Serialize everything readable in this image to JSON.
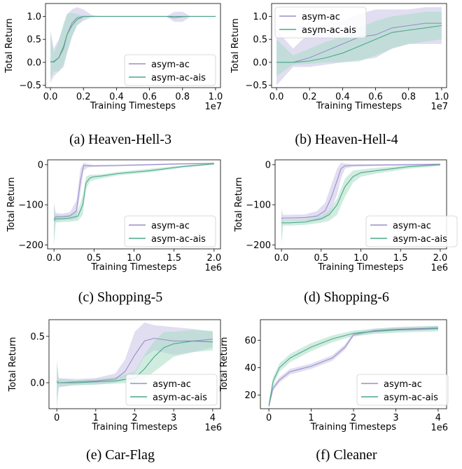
{
  "colors": {
    "asym_ac": "#9b8ec9",
    "asym_ac_ais": "#4aa88a",
    "band_ac": "#c9c2e6",
    "band_ais": "#a9dcc5"
  },
  "captions": [
    "(a)  Heaven-Hell-3",
    "(b)  Heaven-Hell-4",
    "(c)  Shopping-5",
    "(d)  Shopping-6",
    "(e)  Car-Flag",
    "(f)  Cleaner"
  ],
  "chart_data": [
    {
      "type": "line",
      "title": "",
      "xlabel": "Training Timesteps",
      "ylabel": "Total Return",
      "x_multiplier": "1e7",
      "xlim": [
        -0.03,
        1.03
      ],
      "ylim": [
        -0.55,
        1.28
      ],
      "xticks": [
        "0.0",
        "0.2",
        "0.4",
        "0.6",
        "0.8",
        "1.0"
      ],
      "xtick_values": [
        0,
        0.2,
        0.4,
        0.6,
        0.8,
        1.0
      ],
      "yticks": [
        "−0.5",
        "0.0",
        "0.5",
        "1.0"
      ],
      "ytick_values": [
        -0.5,
        0,
        0.5,
        1.0
      ],
      "grid": false,
      "legend_position": "lower-right",
      "series": [
        {
          "name": "asym-ac",
          "x": [
            0,
            0.02,
            0.05,
            0.08,
            0.1,
            0.13,
            0.16,
            0.2,
            0.25,
            0.3,
            0.5,
            0.7,
            0.75,
            0.8,
            0.85,
            1.0
          ],
          "y": [
            0.02,
            0.0,
            0.1,
            0.3,
            0.6,
            0.85,
            0.97,
            1.0,
            1.0,
            1.0,
            1.0,
            1.0,
            0.97,
            0.99,
            1.0,
            1.0
          ],
          "upper": [
            0.7,
            0.3,
            0.5,
            0.8,
            1.05,
            1.15,
            1.2,
            1.15,
            1.03,
            1.0,
            1.0,
            1.0,
            1.1,
            1.1,
            1.0,
            1.0
          ],
          "lower": [
            -0.45,
            -0.3,
            -0.2,
            -0.1,
            0.2,
            0.55,
            0.8,
            0.9,
            0.98,
            1.0,
            1.0,
            1.0,
            0.88,
            0.88,
            1.0,
            1.0
          ]
        },
        {
          "name": "asym-ac-ais",
          "x": [
            0,
            0.02,
            0.05,
            0.08,
            0.1,
            0.13,
            0.16,
            0.2,
            0.25,
            0.3,
            0.5,
            0.7,
            0.75,
            0.8,
            0.85,
            1.0
          ],
          "y": [
            0.0,
            0.02,
            0.1,
            0.35,
            0.6,
            0.8,
            0.93,
            1.0,
            1.0,
            1.0,
            1.0,
            1.0,
            1.0,
            1.0,
            1.0,
            1.0
          ],
          "upper": [
            0.6,
            0.2,
            0.45,
            0.85,
            1.05,
            1.08,
            1.05,
            1.02,
            1.0,
            1.0,
            1.0,
            1.0,
            1.0,
            1.0,
            1.0,
            1.0
          ],
          "lower": [
            -0.35,
            -0.2,
            -0.2,
            -0.05,
            0.2,
            0.55,
            0.8,
            0.95,
            1.0,
            1.0,
            1.0,
            1.0,
            1.0,
            1.0,
            1.0,
            1.0
          ]
        }
      ]
    },
    {
      "type": "line",
      "title": "",
      "xlabel": "Training Timesteps",
      "ylabel": "Total Return",
      "x_multiplier": "1e7",
      "xlim": [
        -0.03,
        1.03
      ],
      "ylim": [
        -0.55,
        1.28
      ],
      "xticks": [
        "0.0",
        "0.2",
        "0.4",
        "0.6",
        "0.8",
        "1.0"
      ],
      "xtick_values": [
        0,
        0.2,
        0.4,
        0.6,
        0.8,
        1.0
      ],
      "yticks": [
        "−0.5",
        "0.0",
        "0.5",
        "1.0"
      ],
      "ytick_values": [
        -0.5,
        0,
        0.5,
        1.0
      ],
      "grid": false,
      "legend_position": "upper-left",
      "series": [
        {
          "name": "asym-ac",
          "x": [
            0,
            0.1,
            0.2,
            0.3,
            0.4,
            0.5,
            0.6,
            0.7,
            0.8,
            0.9,
            1.0
          ],
          "y": [
            0.0,
            0.0,
            0.1,
            0.25,
            0.4,
            0.55,
            0.6,
            0.75,
            0.8,
            0.85,
            0.85
          ],
          "upper": [
            0.7,
            0.3,
            0.65,
            0.85,
            0.9,
            1.05,
            1.15,
            1.15,
            1.15,
            1.2,
            1.2
          ],
          "lower": [
            -0.5,
            -0.1,
            -0.1,
            -0.05,
            0.0,
            0.05,
            0.1,
            0.3,
            0.4,
            0.4,
            0.4
          ]
        },
        {
          "name": "asym-ac-ais",
          "x": [
            0,
            0.1,
            0.2,
            0.3,
            0.4,
            0.5,
            0.6,
            0.7,
            0.8,
            0.9,
            1.0
          ],
          "y": [
            0.0,
            0.0,
            0.03,
            0.1,
            0.2,
            0.35,
            0.5,
            0.65,
            0.7,
            0.75,
            0.8
          ],
          "upper": [
            0.5,
            0.15,
            0.3,
            0.45,
            0.55,
            0.75,
            0.9,
            1.0,
            1.05,
            1.1,
            1.1
          ],
          "lower": [
            -0.3,
            -0.05,
            -0.03,
            0.0,
            0.0,
            0.02,
            0.15,
            0.3,
            0.4,
            0.45,
            0.5
          ]
        }
      ]
    },
    {
      "type": "line",
      "title": "",
      "xlabel": "Training Timesteps",
      "ylabel": "Total Return",
      "x_multiplier": "1e6",
      "xlim": [
        -0.08,
        2.08
      ],
      "ylim": [
        -210,
        12
      ],
      "xticks": [
        "0.0",
        "0.5",
        "1.0",
        "1.5",
        "2.0"
      ],
      "xtick_values": [
        0,
        0.5,
        1.0,
        1.5,
        2.0
      ],
      "yticks": [
        "−200",
        "−100",
        "0"
      ],
      "ytick_values": [
        -200,
        -100,
        0
      ],
      "grid": false,
      "legend_position": "lower-right",
      "series": [
        {
          "name": "asym-ac",
          "x": [
            0,
            0.02,
            0.1,
            0.2,
            0.28,
            0.33,
            0.37,
            0.42,
            0.5,
            0.8,
            1.2,
            1.6,
            2.0
          ],
          "y": [
            -135,
            -130,
            -130,
            -128,
            -115,
            -40,
            -2,
            -3,
            -3,
            -2,
            0,
            2,
            3
          ],
          "upper": [
            -95,
            -120,
            -122,
            -118,
            -90,
            -10,
            5,
            2,
            -1,
            0,
            2,
            4,
            5
          ],
          "lower": [
            -200,
            -142,
            -138,
            -138,
            -135,
            -70,
            -15,
            -7,
            -6,
            -4,
            -2,
            0,
            1
          ]
        },
        {
          "name": "asym-ac-ais",
          "x": [
            0,
            0.02,
            0.1,
            0.2,
            0.3,
            0.36,
            0.4,
            0.45,
            0.5,
            0.6,
            0.8,
            1.2,
            1.6,
            2.0
          ],
          "y": [
            -140,
            -135,
            -135,
            -133,
            -128,
            -100,
            -45,
            -33,
            -30,
            -28,
            -22,
            -15,
            -5,
            2
          ],
          "upper": [
            -100,
            -125,
            -127,
            -124,
            -115,
            -75,
            -30,
            -25,
            -25,
            -24,
            -18,
            -10,
            -2,
            4
          ],
          "lower": [
            -200,
            -145,
            -143,
            -142,
            -140,
            -125,
            -60,
            -42,
            -38,
            -34,
            -27,
            -19,
            -8,
            0
          ]
        }
      ]
    },
    {
      "type": "line",
      "title": "",
      "xlabel": "Training Timesteps",
      "ylabel": "Total Return",
      "x_multiplier": "1e6",
      "xlim": [
        -0.08,
        2.08
      ],
      "ylim": [
        -210,
        12
      ],
      "xticks": [
        "0.0",
        "0.5",
        "1.0",
        "1.5",
        "2.0"
      ],
      "xtick_values": [
        0,
        0.5,
        1.0,
        1.5,
        2.0
      ],
      "yticks": [
        "−200",
        "−100",
        "0"
      ],
      "ytick_values": [
        -200,
        -100,
        0
      ],
      "grid": false,
      "legend_position": "lower-right",
      "series": [
        {
          "name": "asym-ac",
          "x": [
            0,
            0.02,
            0.1,
            0.3,
            0.45,
            0.55,
            0.62,
            0.7,
            0.75,
            0.8,
            0.9,
            1.2,
            1.6,
            2.0
          ],
          "y": [
            -135,
            -133,
            -133,
            -132,
            -128,
            -115,
            -85,
            -40,
            -10,
            -3,
            -2,
            -1,
            0,
            1
          ],
          "upper": [
            -110,
            -125,
            -125,
            -124,
            -115,
            -95,
            -55,
            -10,
            5,
            3,
            1,
            1,
            2,
            3
          ],
          "lower": [
            -200,
            -140,
            -140,
            -140,
            -140,
            -135,
            -115,
            -75,
            -35,
            -10,
            -5,
            -3,
            -2,
            -1
          ]
        },
        {
          "name": "asym-ac-ais",
          "x": [
            0,
            0.02,
            0.1,
            0.3,
            0.5,
            0.6,
            0.7,
            0.8,
            0.9,
            1.0,
            1.2,
            1.6,
            2.0
          ],
          "y": [
            -145,
            -145,
            -145,
            -143,
            -135,
            -125,
            -100,
            -55,
            -30,
            -20,
            -15,
            -5,
            0
          ],
          "upper": [
            -120,
            -138,
            -138,
            -137,
            -128,
            -115,
            -85,
            -35,
            -15,
            -12,
            -8,
            -2,
            2
          ],
          "lower": [
            -195,
            -152,
            -152,
            -150,
            -145,
            -140,
            -125,
            -80,
            -45,
            -30,
            -22,
            -10,
            -3
          ]
        }
      ]
    },
    {
      "type": "line",
      "title": "",
      "xlabel": "Training Timesteps",
      "ylabel": "Total Return",
      "x_multiplier": "1e6",
      "xlim": [
        -0.2,
        4.2
      ],
      "ylim": [
        -0.28,
        0.68
      ],
      "xticks": [
        "0",
        "1",
        "2",
        "3",
        "4"
      ],
      "xtick_values": [
        0,
        1,
        2,
        3,
        4
      ],
      "yticks": [
        "0.0",
        "0.5"
      ],
      "ytick_values": [
        0,
        0.5
      ],
      "grid": false,
      "legend_position": "lower-right",
      "series": [
        {
          "name": "asym-ac",
          "x": [
            0,
            0.05,
            0.5,
            1.0,
            1.5,
            1.75,
            2.0,
            2.25,
            2.5,
            3.0,
            3.5,
            4.0
          ],
          "y": [
            0.02,
            0.0,
            0.01,
            0.02,
            0.04,
            0.12,
            0.3,
            0.45,
            0.48,
            0.45,
            0.45,
            0.47
          ],
          "upper": [
            0.2,
            0.05,
            0.04,
            0.05,
            0.1,
            0.25,
            0.55,
            0.65,
            0.62,
            0.6,
            0.58,
            0.55
          ],
          "lower": [
            -0.2,
            -0.05,
            -0.02,
            -0.02,
            0.0,
            0.03,
            0.1,
            0.28,
            0.35,
            0.3,
            0.33,
            0.38
          ]
        },
        {
          "name": "asym-ac-ais",
          "x": [
            0,
            0.05,
            0.5,
            1.0,
            1.5,
            2.0,
            2.25,
            2.5,
            2.75,
            3.0,
            3.5,
            4.0
          ],
          "y": [
            0.0,
            0.0,
            0.0,
            0.01,
            0.02,
            0.05,
            0.15,
            0.28,
            0.38,
            0.42,
            0.45,
            0.44
          ],
          "upper": [
            0.25,
            0.04,
            0.03,
            0.04,
            0.06,
            0.12,
            0.3,
            0.45,
            0.55,
            0.55,
            0.57,
            0.56
          ],
          "lower": [
            -0.3,
            -0.04,
            -0.03,
            -0.02,
            -0.01,
            0.0,
            0.04,
            0.12,
            0.2,
            0.28,
            0.33,
            0.35
          ]
        }
      ]
    },
    {
      "type": "line",
      "title": "",
      "xlabel": "Training Timesteps",
      "ylabel": "Total Return",
      "x_multiplier": "1e6",
      "xlim": [
        -0.2,
        4.2
      ],
      "ylim": [
        10,
        75
      ],
      "xticks": [
        "0",
        "1",
        "2",
        "3",
        "4"
      ],
      "xtick_values": [
        0,
        1,
        2,
        3,
        4
      ],
      "yticks": [
        "20",
        "40",
        "60"
      ],
      "ytick_values": [
        20,
        40,
        60
      ],
      "grid": false,
      "legend_position": "lower-right",
      "series": [
        {
          "name": "asym-ac",
          "x": [
            0,
            0.1,
            0.25,
            0.5,
            0.75,
            1.0,
            1.5,
            1.8,
            2.0,
            2.5,
            3.0,
            3.5,
            4.0
          ],
          "y": [
            12,
            25,
            31,
            37,
            39,
            41,
            47,
            55,
            64,
            67,
            68,
            68.5,
            69
          ],
          "upper": [
            15,
            27,
            33,
            39,
            41,
            43,
            49,
            57,
            65.5,
            68.5,
            69.5,
            70,
            70.5
          ],
          "lower": [
            10,
            23,
            29,
            35,
            37,
            39,
            45,
            53,
            62.5,
            65.5,
            66.5,
            67,
            67.5
          ]
        },
        {
          "name": "asym-ac-ais",
          "x": [
            0,
            0.1,
            0.25,
            0.5,
            0.75,
            1.0,
            1.5,
            2.0,
            2.5,
            3.0,
            3.5,
            4.0
          ],
          "y": [
            12,
            30,
            40,
            47,
            51,
            55,
            61,
            65,
            66.5,
            67.5,
            68,
            68.5
          ],
          "upper": [
            15,
            33,
            43,
            50,
            54,
            58,
            63.5,
            67,
            68.5,
            69.5,
            70,
            70.5
          ],
          "lower": [
            10,
            27,
            37,
            44,
            48,
            52,
            58.5,
            63,
            64.5,
            65.5,
            66,
            66.5
          ]
        }
      ]
    }
  ]
}
